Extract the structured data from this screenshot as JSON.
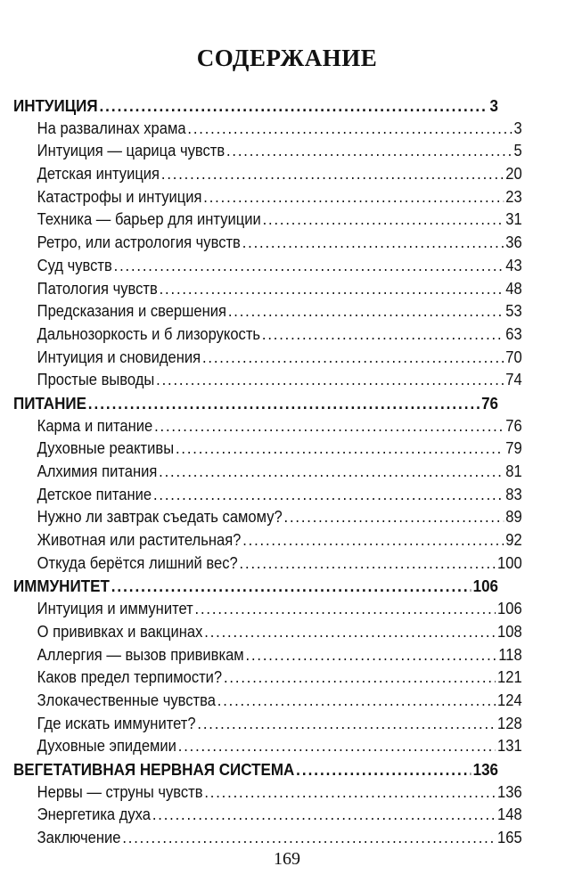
{
  "title": "СОДЕРЖАНИЕ",
  "sections": [
    {
      "label": "ИНТУИЦИЯ",
      "page": "3",
      "items": [
        {
          "label": "На развалинах храма",
          "page": "3"
        },
        {
          "label": "Интуиция — царица чувств",
          "page": "5"
        },
        {
          "label": "Детская интуиция",
          "page": "20"
        },
        {
          "label": "Катастрофы и интуиция",
          "page": "23"
        },
        {
          "label": "Техника — барьер для интуиции",
          "page": "31"
        },
        {
          "label": "Ретро, или астрология чувств",
          "page": "36"
        },
        {
          "label": "Суд чувств",
          "page": "43"
        },
        {
          "label": "Патология чувств",
          "page": "48"
        },
        {
          "label": "Предсказания и свершения",
          "page": "53"
        },
        {
          "label": "Дальнозоркость и б лизорукость",
          "page": "63"
        },
        {
          "label": "Интуиция и сновидения",
          "page": "70"
        },
        {
          "label": "Простые выводы",
          "page": "74"
        }
      ]
    },
    {
      "label": "ПИТАНИЕ",
      "page": "76",
      "items": [
        {
          "label": "Карма и питание",
          "page": "76"
        },
        {
          "label": "Духовные реактивы",
          "page": "79"
        },
        {
          "label": "Алхимия питания",
          "page": "81"
        },
        {
          "label": "Детское питание",
          "page": "83"
        },
        {
          "label": "Нужно ли завтрак съедать самому?",
          "page": "89"
        },
        {
          "label": "Животная или растительная?",
          "page": "92"
        },
        {
          "label": "Откуда берётся лишний вес?",
          "page": "100"
        }
      ]
    },
    {
      "label": "ИММУНИТЕТ",
      "page": "106",
      "items": [
        {
          "label": "Интуиция и иммунитет",
          "page": "106"
        },
        {
          "label": "О прививках и вакцинах",
          "page": "108"
        },
        {
          "label": "Аллергия — вызов прививкам",
          "page": "118"
        },
        {
          "label": "Каков предел терпимости?",
          "page": "121"
        },
        {
          "label": "Злокачественные чувства",
          "page": "124"
        },
        {
          "label": "Где искать иммунитет?",
          "page": "128"
        },
        {
          "label": "Духовные эпидемии",
          "page": "131"
        }
      ]
    },
    {
      "label": "ВЕГЕТАТИВНАЯ НЕРВНАЯ СИСТЕМА",
      "page": "136",
      "items": [
        {
          "label": "Нервы — струны чувств",
          "page": "136"
        },
        {
          "label": "Энергетика духа",
          "page": "148"
        },
        {
          "label": "Заключение",
          "page": "165"
        }
      ]
    }
  ],
  "page_number": "169"
}
